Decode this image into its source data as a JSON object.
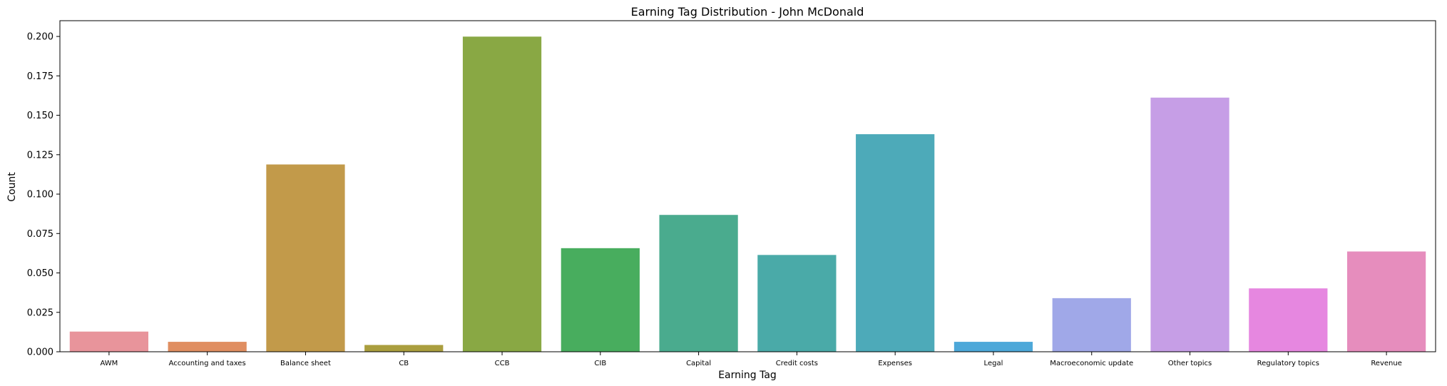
{
  "chart_data": {
    "type": "bar",
    "title": "Earning Tag Distribution - John McDonald",
    "xlabel": "Earning Tag",
    "ylabel": "Count",
    "ylim": [
      0,
      0.21
    ],
    "yticks": [
      "0.000",
      "0.025",
      "0.050",
      "0.075",
      "0.100",
      "0.125",
      "0.150",
      "0.175",
      "0.200"
    ],
    "ytick_values": [
      0,
      0.025,
      0.05,
      0.075,
      0.1,
      0.125,
      0.15,
      0.175,
      0.2
    ],
    "grid": false,
    "categories": [
      "AWM",
      "Accounting and taxes",
      "Balance sheet",
      "CB",
      "CCB",
      "CIB",
      "Capital",
      "Credit costs",
      "Expenses",
      "Legal",
      "Macroeconomic update",
      "Other topics",
      "Regulatory topics",
      "Revenue"
    ],
    "values": [
      0.0128,
      0.0063,
      0.1188,
      0.0043,
      0.1999,
      0.0657,
      0.0868,
      0.0614,
      0.138,
      0.0063,
      0.034,
      0.1612,
      0.0402,
      0.0636
    ],
    "colors": [
      "#e8949b",
      "#e08e61",
      "#c29a4a",
      "#aa9e3e",
      "#89a844",
      "#48ad5e",
      "#4aab8e",
      "#4aaaa8",
      "#4daab9",
      "#4da8d9",
      "#a0a8e8",
      "#c69ee6",
      "#e687e0",
      "#e68dbd"
    ]
  }
}
